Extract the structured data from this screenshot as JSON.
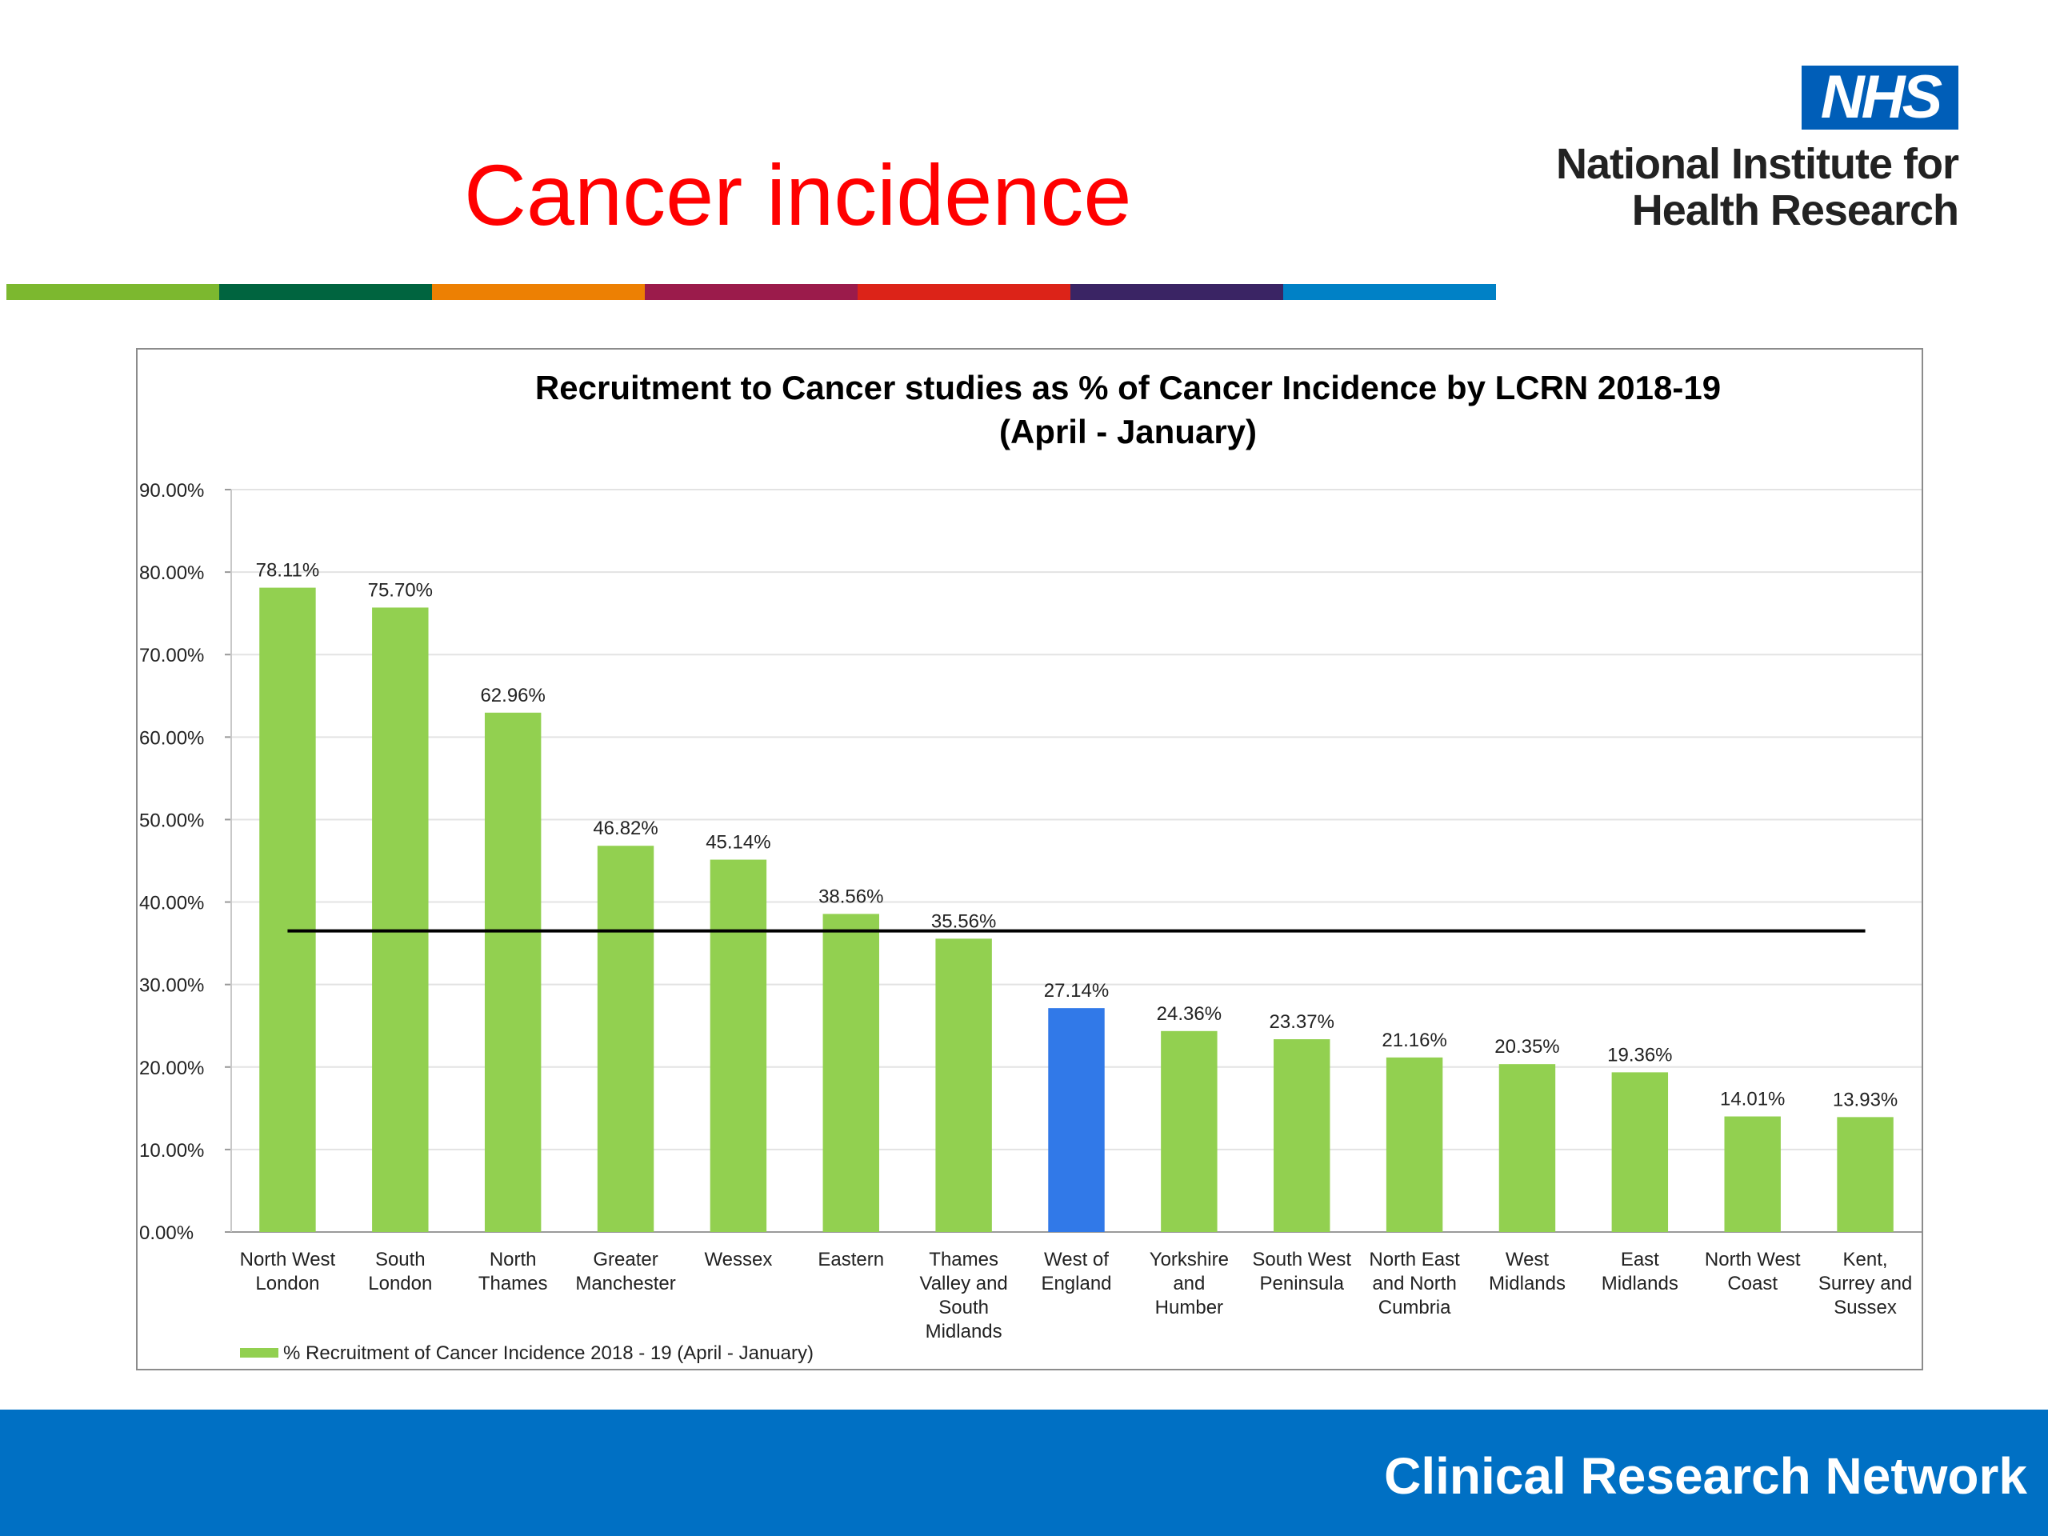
{
  "slide": {
    "title": "Cancer incidence",
    "stripe_colors": [
      "#7cb82f",
      "#00643f",
      "#ed8003",
      "#9b1b4b",
      "#dc2318",
      "#3a2464",
      "#0081c6"
    ],
    "title_color": "#ff0000"
  },
  "logo": {
    "badge": "NHS",
    "line1": "National Institute for",
    "line2": "Health Research",
    "badge_color": "#005eb8"
  },
  "footer": {
    "text": "Clinical Research Network",
    "color": "#0070c4"
  },
  "chart_data": {
    "type": "bar",
    "title_line1": "Recruitment to Cancer studies as % of Cancer Incidence by LCRN 2018-19",
    "title_line2": "(April - January)",
    "xlabel": "",
    "ylabel": "",
    "ylim": [
      0,
      90
    ],
    "yticks": [
      0,
      10,
      20,
      30,
      40,
      50,
      60,
      70,
      80,
      90
    ],
    "ytick_labels": [
      "0.00%",
      "10.00%",
      "20.00%",
      "30.00%",
      "40.00%",
      "50.00%",
      "60.00%",
      "70.00%",
      "80.00%",
      "90.00%"
    ],
    "grid": true,
    "categories": [
      [
        "North West",
        "London"
      ],
      [
        "South",
        "London"
      ],
      [
        "North",
        "Thames"
      ],
      [
        "Greater",
        "Manchester"
      ],
      [
        "Wessex"
      ],
      [
        "Eastern"
      ],
      [
        "Thames",
        "Valley and",
        "South",
        "Midlands"
      ],
      [
        "West of",
        "England"
      ],
      [
        "Yorkshire",
        "and",
        "Humber"
      ],
      [
        "South West",
        "Peninsula"
      ],
      [
        "North East",
        "and North",
        "Cumbria"
      ],
      [
        "West",
        "Midlands"
      ],
      [
        "East",
        "Midlands"
      ],
      [
        "North West",
        "Coast"
      ],
      [
        "Kent,",
        "Surrey and",
        "Sussex"
      ]
    ],
    "series": [
      {
        "name": "% Recruitment of Cancer Incidence 2018 - 19 (April - January)",
        "color": "#92d050",
        "values": [
          78.11,
          75.7,
          62.96,
          46.82,
          45.14,
          38.56,
          35.56,
          27.14,
          24.36,
          23.37,
          21.16,
          20.35,
          19.36,
          14.01,
          13.93
        ],
        "data_labels": [
          "78.11%",
          "75.70%",
          "62.96%",
          "46.82%",
          "45.14%",
          "38.56%",
          "35.56%",
          "27.14%",
          "24.36%",
          "23.37%",
          "21.16%",
          "20.35%",
          "19.36%",
          "14.01%",
          "13.93%"
        ]
      }
    ],
    "highlight": {
      "index": 7,
      "color": "#3179e8"
    },
    "average_line": {
      "value": 36.5,
      "color": "#000000"
    },
    "legend": {
      "position": "bottom-left",
      "label": "% Recruitment of Cancer Incidence 2018 - 19 (April - January)"
    }
  }
}
